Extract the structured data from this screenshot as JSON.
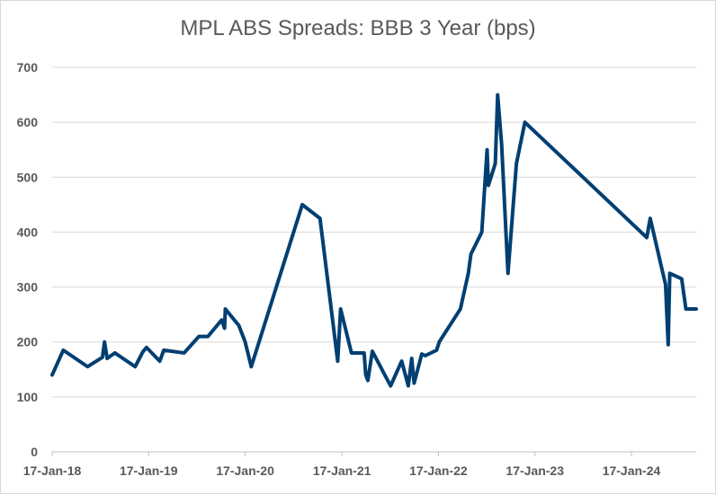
{
  "chart_data": {
    "type": "line",
    "title": "MPL ABS Spreads: BBB 3 Year (bps)",
    "xlabel": "",
    "ylabel": "",
    "ylim": [
      0,
      700
    ],
    "y_ticks": [
      "0",
      "100",
      "200",
      "300",
      "400",
      "500",
      "600",
      "700"
    ],
    "x_ticks": [
      {
        "label": "17-Jan-18",
        "date": "2018-01-17"
      },
      {
        "label": "17-Jan-19",
        "date": "2019-01-17"
      },
      {
        "label": "17-Jan-20",
        "date": "2020-01-17"
      },
      {
        "label": "17-Jan-21",
        "date": "2021-01-17"
      },
      {
        "label": "17-Jan-22",
        "date": "2022-01-17"
      },
      {
        "label": "17-Jan-23",
        "date": "2023-01-17"
      },
      {
        "label": "17-Jan-24",
        "date": "2024-01-17"
      }
    ],
    "xlim": [
      "2018-01-17",
      "2024-09-18"
    ],
    "grid": "horizontal",
    "color": "#003F72",
    "series": [
      {
        "points": [
          [
            "2018-01-17",
            140
          ],
          [
            "2018-02-28",
            185
          ],
          [
            "2018-05-31",
            155
          ],
          [
            "2018-07-26",
            172
          ],
          [
            "2018-08-03",
            200
          ],
          [
            "2018-08-13",
            170
          ],
          [
            "2018-09-11",
            180
          ],
          [
            "2018-11-27",
            155
          ],
          [
            "2018-12-26",
            182
          ],
          [
            "2019-01-09",
            190
          ],
          [
            "2019-02-28",
            165
          ],
          [
            "2019-03-15",
            185
          ],
          [
            "2019-05-31",
            180
          ],
          [
            "2019-07-26",
            210
          ],
          [
            "2019-08-29",
            210
          ],
          [
            "2019-10-20",
            240
          ],
          [
            "2019-10-31",
            225
          ],
          [
            "2019-11-03",
            260
          ],
          [
            "2019-12-24",
            230
          ],
          [
            "2020-01-17",
            200
          ],
          [
            "2020-02-09",
            155
          ],
          [
            "2020-08-20",
            450
          ],
          [
            "2020-10-26",
            425
          ],
          [
            "2021-01-01",
            165
          ],
          [
            "2021-01-12",
            260
          ],
          [
            "2021-02-22",
            180
          ],
          [
            "2021-04-11",
            180
          ],
          [
            "2021-04-17",
            140
          ],
          [
            "2021-04-25",
            130
          ],
          [
            "2021-05-12",
            183
          ],
          [
            "2021-07-20",
            120
          ],
          [
            "2021-08-31",
            165
          ],
          [
            "2021-09-25",
            120
          ],
          [
            "2021-10-08",
            170
          ],
          [
            "2021-10-17",
            125
          ],
          [
            "2021-11-15",
            178
          ],
          [
            "2021-11-28",
            175
          ],
          [
            "2022-01-10",
            185
          ],
          [
            "2022-01-20",
            200
          ],
          [
            "2022-04-10",
            260
          ],
          [
            "2022-05-10",
            325
          ],
          [
            "2022-05-20",
            360
          ],
          [
            "2022-06-30",
            400
          ],
          [
            "2022-07-20",
            550
          ],
          [
            "2022-07-25",
            485
          ],
          [
            "2022-08-20",
            525
          ],
          [
            "2022-08-29",
            650
          ],
          [
            "2022-09-13",
            560
          ],
          [
            "2022-10-07",
            325
          ],
          [
            "2022-11-08",
            525
          ],
          [
            "2022-12-10",
            600
          ],
          [
            "2024-03-15",
            390
          ],
          [
            "2024-03-28",
            425
          ],
          [
            "2024-05-15",
            325
          ],
          [
            "2024-05-25",
            305
          ],
          [
            "2024-06-04",
            195
          ],
          [
            "2024-06-10",
            325
          ],
          [
            "2024-07-25",
            315
          ],
          [
            "2024-08-10",
            260
          ],
          [
            "2024-09-18",
            260
          ]
        ]
      }
    ]
  }
}
